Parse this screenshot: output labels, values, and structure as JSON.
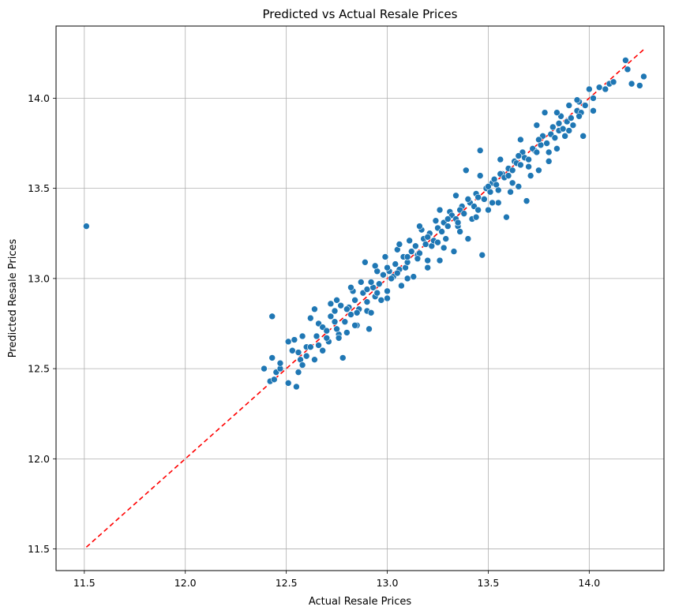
{
  "chart_data": {
    "type": "scatter",
    "title": "Predicted vs Actual Resale Prices",
    "xlabel": "Actual Resale Prices",
    "ylabel": "Predicted Resale Prices",
    "xlim": [
      11.36,
      14.37
    ],
    "ylim": [
      11.38,
      14.4
    ],
    "x_ticks": [
      "11.5",
      "12.0",
      "12.5",
      "13.0",
      "13.5",
      "14.0"
    ],
    "y_ticks": [
      "11.5",
      "12.0",
      "12.5",
      "13.0",
      "13.5",
      "14.0"
    ],
    "grid": true,
    "point_color": "#1f77b4",
    "reference_line": {
      "style": "dashed",
      "color": "#ff0000",
      "from": [
        11.51,
        11.51
      ],
      "to": [
        14.27,
        14.27
      ]
    },
    "series": [
      {
        "points": [
          [
            11.51,
            13.29
          ],
          [
            12.43,
            12.79
          ],
          [
            12.39,
            12.5
          ],
          [
            12.42,
            12.43
          ],
          [
            12.43,
            12.56
          ],
          [
            12.44,
            12.44
          ],
          [
            12.45,
            12.48
          ],
          [
            12.47,
            12.5
          ],
          [
            12.47,
            12.53
          ],
          [
            12.51,
            12.42
          ],
          [
            12.51,
            12.65
          ],
          [
            12.53,
            12.6
          ],
          [
            12.55,
            12.4
          ],
          [
            12.54,
            12.66
          ],
          [
            12.56,
            12.48
          ],
          [
            12.57,
            12.55
          ],
          [
            12.58,
            12.68
          ],
          [
            12.6,
            12.62
          ],
          [
            12.62,
            12.78
          ],
          [
            12.64,
            12.83
          ],
          [
            12.66,
            12.75
          ],
          [
            12.68,
            12.6
          ],
          [
            12.71,
            12.65
          ],
          [
            12.74,
            12.76
          ],
          [
            12.75,
            12.88
          ],
          [
            12.78,
            12.56
          ],
          [
            12.8,
            12.7
          ],
          [
            12.82,
            12.8
          ],
          [
            12.83,
            12.93
          ],
          [
            12.85,
            12.74
          ],
          [
            12.87,
            12.98
          ],
          [
            12.89,
            13.09
          ],
          [
            12.9,
            12.82
          ],
          [
            12.91,
            12.72
          ],
          [
            12.93,
            12.95
          ],
          [
            12.95,
            13.04
          ],
          [
            12.97,
            12.88
          ],
          [
            12.99,
            13.12
          ],
          [
            13.0,
            12.93
          ],
          [
            13.03,
            13.01
          ],
          [
            13.05,
            13.16
          ],
          [
            13.07,
            12.96
          ],
          [
            13.09,
            13.06
          ],
          [
            13.11,
            13.21
          ],
          [
            13.13,
            13.01
          ],
          [
            13.15,
            13.13
          ],
          [
            13.17,
            13.27
          ],
          [
            13.2,
            13.06
          ],
          [
            13.22,
            13.18
          ],
          [
            13.24,
            13.32
          ],
          [
            13.26,
            13.1
          ],
          [
            13.29,
            13.22
          ],
          [
            13.31,
            13.37
          ],
          [
            13.33,
            13.15
          ],
          [
            13.35,
            13.29
          ],
          [
            13.37,
            13.4
          ],
          [
            13.39,
            13.6
          ],
          [
            13.4,
            13.22
          ],
          [
            13.42,
            13.33
          ],
          [
            13.44,
            13.47
          ],
          [
            13.46,
            13.71
          ],
          [
            13.47,
            13.13
          ],
          [
            13.5,
            13.38
          ],
          [
            13.52,
            13.53
          ],
          [
            13.55,
            13.42
          ],
          [
            13.57,
            13.58
          ],
          [
            13.59,
            13.34
          ],
          [
            13.61,
            13.48
          ],
          [
            13.63,
            13.65
          ],
          [
            13.65,
            13.51
          ],
          [
            13.67,
            13.7
          ],
          [
            13.69,
            13.43
          ],
          [
            13.71,
            13.57
          ],
          [
            13.73,
            13.71
          ],
          [
            13.75,
            13.6
          ],
          [
            13.77,
            13.79
          ],
          [
            13.78,
            13.92
          ],
          [
            13.8,
            13.65
          ],
          [
            13.82,
            13.84
          ],
          [
            13.84,
            13.72
          ],
          [
            13.86,
            13.9
          ],
          [
            13.88,
            13.79
          ],
          [
            13.9,
            13.96
          ],
          [
            13.92,
            13.85
          ],
          [
            13.95,
            13.98
          ],
          [
            13.97,
            13.79
          ],
          [
            14.0,
            14.05
          ],
          [
            14.02,
            13.93
          ],
          [
            14.05,
            14.06
          ],
          [
            14.08,
            14.05
          ],
          [
            14.1,
            14.08
          ],
          [
            14.12,
            14.09
          ],
          [
            14.18,
            14.21
          ],
          [
            14.19,
            14.16
          ],
          [
            14.21,
            14.08
          ],
          [
            14.25,
            14.07
          ],
          [
            14.27,
            14.12
          ],
          [
            12.58,
            12.52
          ],
          [
            12.6,
            12.57
          ],
          [
            12.62,
            12.62
          ],
          [
            12.65,
            12.68
          ],
          [
            12.68,
            12.73
          ],
          [
            12.7,
            12.71
          ],
          [
            12.72,
            12.79
          ],
          [
            12.74,
            12.82
          ],
          [
            12.76,
            12.69
          ],
          [
            12.77,
            12.85
          ],
          [
            12.79,
            12.76
          ],
          [
            12.81,
            12.84
          ],
          [
            12.84,
            12.88
          ],
          [
            12.86,
            12.83
          ],
          [
            12.88,
            12.92
          ],
          [
            12.9,
            12.87
          ],
          [
            12.92,
            12.98
          ],
          [
            12.94,
            12.9
          ],
          [
            12.96,
            12.97
          ],
          [
            12.98,
            13.02
          ],
          [
            13.01,
            13.04
          ],
          [
            13.02,
            13.0
          ],
          [
            13.04,
            13.08
          ],
          [
            13.06,
            13.05
          ],
          [
            13.08,
            13.12
          ],
          [
            13.1,
            13.09
          ],
          [
            13.12,
            13.15
          ],
          [
            13.14,
            13.18
          ],
          [
            13.16,
            13.14
          ],
          [
            13.18,
            13.22
          ],
          [
            13.19,
            13.19
          ],
          [
            13.21,
            13.25
          ],
          [
            13.23,
            13.21
          ],
          [
            13.25,
            13.28
          ],
          [
            13.27,
            13.26
          ],
          [
            13.28,
            13.31
          ],
          [
            13.3,
            13.29
          ],
          [
            13.32,
            13.35
          ],
          [
            13.34,
            13.33
          ],
          [
            13.36,
            13.38
          ],
          [
            13.38,
            13.36
          ],
          [
            13.41,
            13.42
          ],
          [
            13.43,
            13.4
          ],
          [
            13.45,
            13.45
          ],
          [
            13.48,
            13.44
          ],
          [
            13.49,
            13.5
          ],
          [
            13.51,
            13.48
          ],
          [
            13.53,
            13.55
          ],
          [
            13.54,
            13.52
          ],
          [
            13.56,
            13.58
          ],
          [
            13.58,
            13.56
          ],
          [
            13.6,
            13.61
          ],
          [
            13.62,
            13.6
          ],
          [
            13.64,
            13.64
          ],
          [
            13.66,
            13.63
          ],
          [
            13.68,
            13.67
          ],
          [
            13.7,
            13.66
          ],
          [
            13.72,
            13.72
          ],
          [
            13.74,
            13.7
          ],
          [
            13.76,
            13.74
          ],
          [
            13.79,
            13.75
          ],
          [
            13.81,
            13.8
          ],
          [
            13.83,
            13.78
          ],
          [
            13.85,
            13.82
          ],
          [
            13.87,
            13.83
          ],
          [
            13.89,
            13.87
          ],
          [
            13.91,
            13.89
          ],
          [
            13.94,
            13.93
          ],
          [
            13.96,
            13.92
          ],
          [
            13.98,
            13.96
          ],
          [
            12.66,
            12.63
          ],
          [
            12.7,
            12.67
          ],
          [
            12.75,
            12.72
          ],
          [
            12.8,
            12.83
          ],
          [
            12.85,
            12.81
          ],
          [
            12.9,
            12.94
          ],
          [
            12.95,
            12.92
          ],
          [
            13.0,
            13.06
          ],
          [
            13.05,
            13.03
          ],
          [
            13.1,
            13.12
          ],
          [
            13.15,
            13.11
          ],
          [
            13.2,
            13.23
          ],
          [
            13.25,
            13.2
          ],
          [
            13.3,
            13.33
          ],
          [
            13.35,
            13.31
          ],
          [
            13.4,
            13.44
          ],
          [
            13.45,
            13.38
          ],
          [
            13.5,
            13.51
          ],
          [
            13.55,
            13.49
          ],
          [
            13.6,
            13.57
          ],
          [
            13.65,
            13.68
          ],
          [
            13.7,
            13.62
          ],
          [
            13.75,
            13.77
          ],
          [
            13.8,
            13.7
          ],
          [
            13.85,
            13.86
          ],
          [
            13.9,
            13.82
          ],
          [
            13.95,
            13.9
          ],
          [
            14.02,
            14.0
          ],
          [
            13.36,
            13.26
          ],
          [
            13.44,
            13.34
          ],
          [
            13.52,
            13.42
          ],
          [
            13.62,
            13.53
          ],
          [
            13.28,
            13.17
          ],
          [
            13.2,
            13.1
          ],
          [
            13.1,
            13.0
          ],
          [
            13.0,
            12.89
          ],
          [
            12.92,
            12.81
          ],
          [
            12.84,
            12.74
          ],
          [
            12.76,
            12.67
          ],
          [
            12.68,
            12.6
          ],
          [
            12.72,
            12.86
          ],
          [
            12.82,
            12.95
          ],
          [
            12.94,
            13.07
          ],
          [
            13.06,
            13.19
          ],
          [
            13.16,
            13.29
          ],
          [
            13.26,
            13.38
          ],
          [
            13.34,
            13.46
          ],
          [
            13.46,
            13.57
          ],
          [
            13.56,
            13.66
          ],
          [
            13.66,
            13.77
          ],
          [
            13.74,
            13.85
          ],
          [
            13.84,
            13.92
          ],
          [
            13.94,
            13.99
          ],
          [
            12.64,
            12.55
          ],
          [
            12.56,
            12.59
          ]
        ]
      }
    ]
  }
}
